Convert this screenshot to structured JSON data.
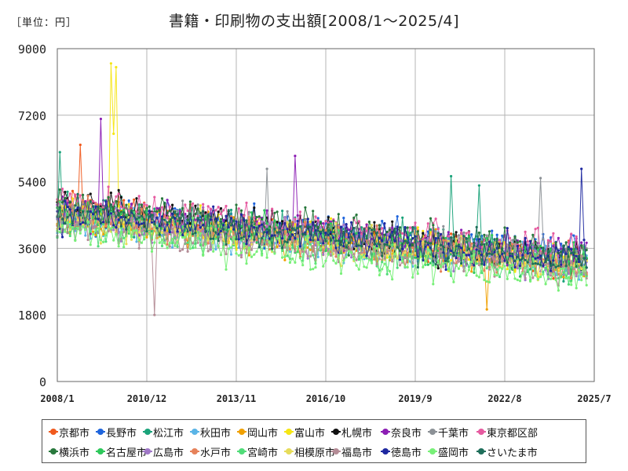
{
  "header": {
    "unit_label": "［単位：円］",
    "title": "書籍・印刷物の支出額[2008/1～2025/4]"
  },
  "chart_data": {
    "type": "line",
    "title": "書籍・印刷物の支出額[2008/1～2025/4]",
    "unit": "円",
    "x_range": [
      "2008/1",
      "2025/7"
    ],
    "xticks": [
      "2008/1",
      "2010/12",
      "2013/11",
      "2016/10",
      "2019/9",
      "2022/8",
      "2025/7"
    ],
    "ylim": [
      0,
      9000
    ],
    "yticks": [
      0,
      1800,
      3600,
      5400,
      7200,
      9000
    ],
    "grid": true,
    "legend_placement": "bottom",
    "series": [
      {
        "name": "京都市",
        "color": "#f05a1e",
        "start": 4700,
        "end": 3150,
        "spikes": [
          [
            "2008/10",
            6400
          ]
        ]
      },
      {
        "name": "長野市",
        "color": "#1e64dc",
        "start": 4600,
        "end": 3500,
        "spikes": []
      },
      {
        "name": "松江市",
        "color": "#1aa37a",
        "start": 4700,
        "end": 3300,
        "spikes": [
          [
            "2008/2",
            6200
          ],
          [
            "2020/11",
            5550
          ],
          [
            "2021/10",
            5300
          ]
        ]
      },
      {
        "name": "秋田市",
        "color": "#5ab4e6",
        "start": 4300,
        "end": 3300,
        "spikes": []
      },
      {
        "name": "岡山市",
        "color": "#f0a000",
        "start": 4400,
        "end": 3100,
        "spikes": [
          [
            "2022/1",
            1950
          ]
        ]
      },
      {
        "name": "富山市",
        "color": "#f5e614",
        "start": 4500,
        "end": 3250,
        "spikes": [
          [
            "2009/10",
            8600
          ],
          [
            "2009/11",
            6700
          ],
          [
            "2009/12",
            8500
          ]
        ]
      },
      {
        "name": "札幌市",
        "color": "#111111",
        "start": 4800,
        "end": 3250,
        "spikes": []
      },
      {
        "name": "奈良市",
        "color": "#8c1eb4",
        "start": 4600,
        "end": 3450,
        "spikes": [
          [
            "2009/6",
            7100
          ],
          [
            "2015/10",
            6100
          ]
        ]
      },
      {
        "name": "千葉市",
        "color": "#8c9196",
        "start": 4500,
        "end": 3400,
        "spikes": [
          [
            "2014/11",
            5750
          ],
          [
            "2023/10",
            5500
          ]
        ]
      },
      {
        "name": "東京都区部",
        "color": "#e65aa0",
        "start": 4900,
        "end": 3500,
        "spikes": []
      },
      {
        "name": "横浜市",
        "color": "#28783c",
        "start": 4800,
        "end": 3400,
        "spikes": []
      },
      {
        "name": "名古屋市",
        "color": "#2dc85a",
        "start": 4500,
        "end": 3200,
        "spikes": []
      },
      {
        "name": "広島市",
        "color": "#a078c8",
        "start": 4400,
        "end": 3200,
        "spikes": []
      },
      {
        "name": "水戸市",
        "color": "#e6825a",
        "start": 4500,
        "end": 3150,
        "spikes": []
      },
      {
        "name": "宮崎市",
        "color": "#50dc78",
        "start": 4300,
        "end": 3000,
        "spikes": []
      },
      {
        "name": "相模原市",
        "color": "#e6dc5a",
        "start": 4400,
        "end": 3150,
        "spikes": []
      },
      {
        "name": "福島市",
        "color": "#b48c96",
        "start": 4300,
        "end": 3100,
        "spikes": [
          [
            "2011/3",
            1800
          ]
        ]
      },
      {
        "name": "徳島市",
        "color": "#1e28a0",
        "start": 4500,
        "end": 3300,
        "spikes": [
          [
            "2025/2",
            5750
          ]
        ]
      },
      {
        "name": "盛岡市",
        "color": "#78f078",
        "start": 4100,
        "end": 2750,
        "spikes": []
      },
      {
        "name": "さいたま市",
        "color": "#1e6e5a",
        "start": 4600,
        "end": 3250,
        "spikes": []
      }
    ]
  }
}
